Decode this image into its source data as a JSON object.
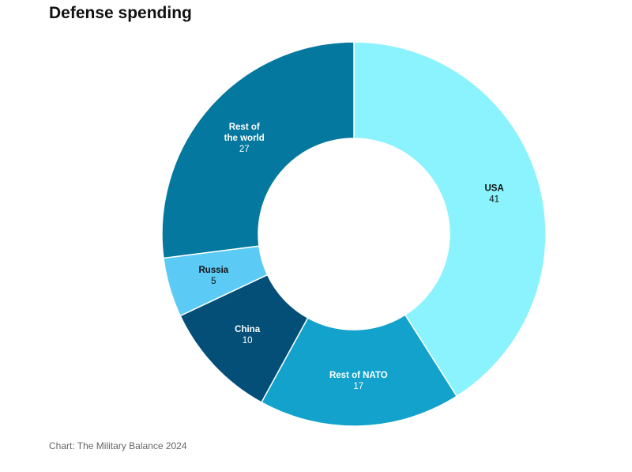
{
  "chart_data": {
    "type": "pie",
    "title": "Defense spending",
    "subtitle": "",
    "source": "Chart: The Military Balance 2024",
    "donut": true,
    "slices": [
      {
        "label": "USA",
        "label_lines": [
          "USA"
        ],
        "value": 41,
        "color": "#8af3fe",
        "text_color": "#111111"
      },
      {
        "label": "Rest of NATO",
        "label_lines": [
          "Rest of NATO"
        ],
        "value": 17,
        "color": "#12a2cb",
        "text_color": "#ffffff"
      },
      {
        "label": "China",
        "label_lines": [
          "China"
        ],
        "value": 10,
        "color": "#034f78",
        "text_color": "#ffffff"
      },
      {
        "label": "Russia",
        "label_lines": [
          "Russia"
        ],
        "value": 5,
        "color": "#5bcbf6",
        "text_color": "#111111"
      },
      {
        "label": "Rest of the world",
        "label_lines": [
          "Rest of",
          "the world"
        ],
        "value": 27,
        "color": "#04789f",
        "text_color": "#ffffff"
      }
    ]
  }
}
